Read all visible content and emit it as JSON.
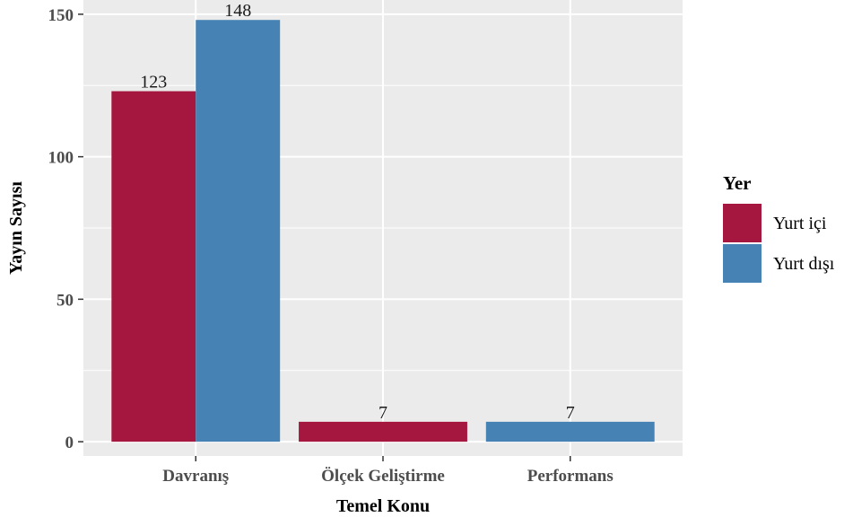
{
  "chart_data": {
    "type": "bar",
    "categories": [
      "Davranış",
      "Ölçek Geliştirme",
      "Performans"
    ],
    "series": [
      {
        "name": "Yurt içi",
        "color": "#A6173F",
        "values": [
          123,
          7,
          null
        ]
      },
      {
        "name": "Yurt dışı",
        "color": "#4682B4",
        "values": [
          148,
          null,
          7
        ]
      }
    ],
    "data_labels": [
      {
        "category": "Davranış",
        "series": "Yurt içi",
        "text": "123"
      },
      {
        "category": "Davranış",
        "series": "Yurt dışı",
        "text": "148"
      },
      {
        "category": "Ölçek Geliştirme",
        "series": "Yurt içi",
        "text": "7"
      },
      {
        "category": "Performans",
        "series": "Yurt dışı",
        "text": "7"
      }
    ],
    "xlabel": "Temel Konu",
    "ylabel": "Yayın Sayısı",
    "ylim": [
      -5,
      155
    ],
    "yticks": [
      0,
      50,
      100,
      150
    ],
    "legend": {
      "title": "Yer",
      "position": "right"
    },
    "grid": true,
    "panel_background": "#EBEBEB",
    "grid_color": "#FFFFFF"
  }
}
